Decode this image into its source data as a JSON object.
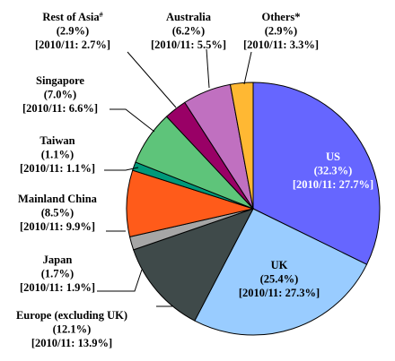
{
  "chart_data": {
    "type": "pie",
    "title": "",
    "start": "12 o'clock, clockwise",
    "slices": [
      {
        "label": "US",
        "value": 32.3,
        "value_text": "(32.3%)",
        "prior_text": "[2010/11: 27.7%]",
        "color": "#6666ff",
        "label_color": "#ffffff"
      },
      {
        "label": "UK",
        "value": 25.4,
        "value_text": "(25.4%)",
        "prior_text": "[2010/11: 27.3%]",
        "color": "#99ccff",
        "label_color": "#000000"
      },
      {
        "label": "Europe (excluding UK)",
        "value": 12.1,
        "value_text": "(12.1%)",
        "prior_text": "[2010/11: 13.9%]",
        "color": "#3f4a4a",
        "label_color": "#000000"
      },
      {
        "label": "Japan",
        "value": 1.7,
        "value_text": "(1.7%)",
        "prior_text": "[2010/11: 1.9%]",
        "color": "#a6a6a6",
        "label_color": "#000000"
      },
      {
        "label": "Mainland China",
        "value": 8.5,
        "value_text": "(8.5%)",
        "prior_text": "[2010/11: 9.9%]",
        "color": "#ff5b1a",
        "label_color": "#000000"
      },
      {
        "label": "Taiwan",
        "value": 1.1,
        "value_text": "(1.1%)",
        "prior_text": "[2010/11: 1.1%]",
        "color": "#00997a",
        "label_color": "#000000"
      },
      {
        "label": "Singapore",
        "value": 7.0,
        "value_text": "(7.0%)",
        "prior_text": "[2010/11: 6.6%]",
        "color": "#5ec47a",
        "label_color": "#000000"
      },
      {
        "label": "Rest of Asia",
        "label_sup": "#",
        "value": 2.9,
        "value_text": "(2.9%)",
        "prior_text": "[2010/11: 2.7%]",
        "color": "#990066",
        "label_color": "#000000"
      },
      {
        "label": "Australia",
        "value": 6.2,
        "value_text": "(6.2%)",
        "prior_text": "[2010/11: 5.5%]",
        "color": "#c070c0",
        "label_color": "#000000"
      },
      {
        "label": "Others*",
        "value": 2.9,
        "value_text": "(2.9%)",
        "prior_text": "[2010/11: 3.3%]",
        "color": "#ffb833",
        "label_color": "#000000"
      }
    ]
  }
}
